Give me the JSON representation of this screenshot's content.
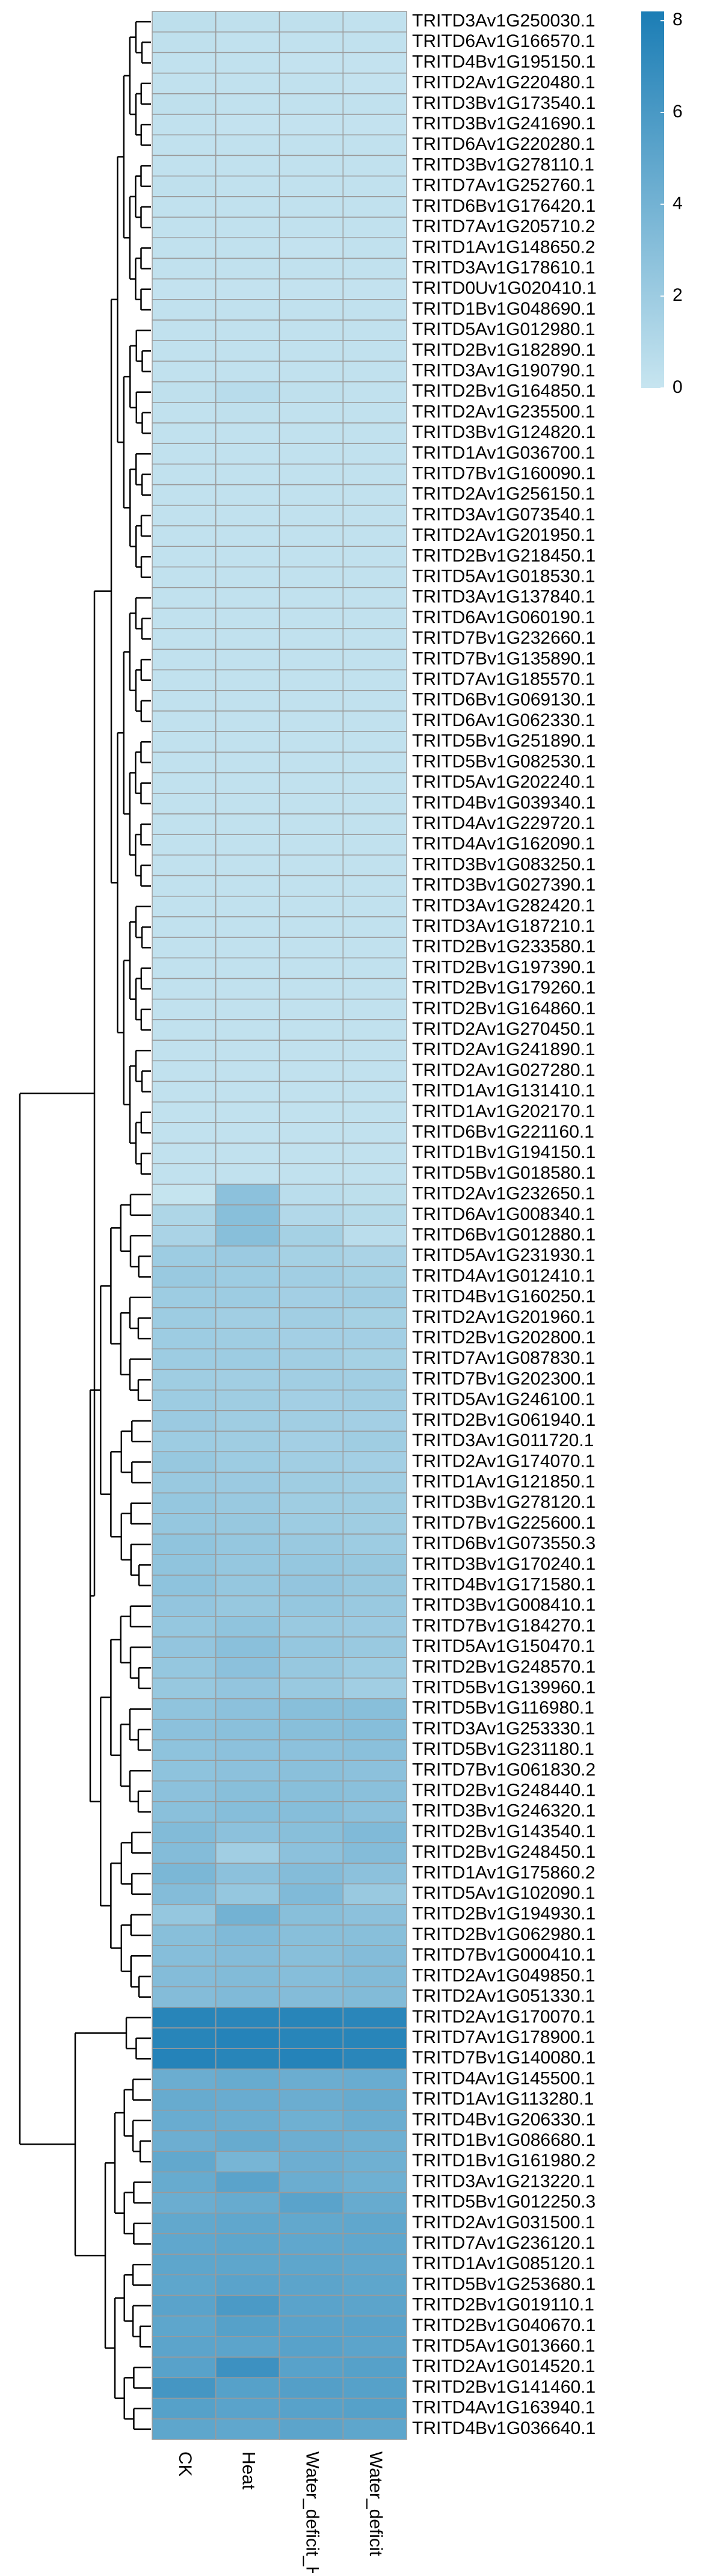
{
  "chart_data": {
    "type": "heatmap",
    "columns": [
      "CK",
      "Heat",
      "Water_deficit_Heat",
      "Water_deficit"
    ],
    "rows": [
      "TRITD3Av1G250030.1",
      "TRITD6Av1G166570.1",
      "TRITD4Bv1G195150.1",
      "TRITD2Av1G220480.1",
      "TRITD3Bv1G173540.1",
      "TRITD3Bv1G241690.1",
      "TRITD6Av1G220280.1",
      "TRITD3Bv1G278110.1",
      "TRITD7Av1G252760.1",
      "TRITD6Bv1G176420.1",
      "TRITD7Av1G205710.2",
      "TRITD1Av1G148650.2",
      "TRITD3Av1G178610.1",
      "TRITD0Uv1G020410.1",
      "TRITD1Bv1G048690.1",
      "TRITD5Av1G012980.1",
      "TRITD2Bv1G182890.1",
      "TRITD3Av1G190790.1",
      "TRITD2Bv1G164850.1",
      "TRITD2Av1G235500.1",
      "TRITD3Bv1G124820.1",
      "TRITD1Av1G036700.1",
      "TRITD7Bv1G160090.1",
      "TRITD2Av1G256150.1",
      "TRITD3Av1G073540.1",
      "TRITD2Av1G201950.1",
      "TRITD2Bv1G218450.1",
      "TRITD5Av1G018530.1",
      "TRITD3Av1G137840.1",
      "TRITD6Av1G060190.1",
      "TRITD7Bv1G232660.1",
      "TRITD7Bv1G135890.1",
      "TRITD7Av1G185570.1",
      "TRITD6Bv1G069130.1",
      "TRITD6Av1G062330.1",
      "TRITD5Bv1G251890.1",
      "TRITD5Bv1G082530.1",
      "TRITD5Av1G202240.1",
      "TRITD4Bv1G039340.1",
      "TRITD4Av1G229720.1",
      "TRITD4Av1G162090.1",
      "TRITD3Bv1G083250.1",
      "TRITD3Bv1G027390.1",
      "TRITD3Av1G282420.1",
      "TRITD3Av1G187210.1",
      "TRITD2Bv1G233580.1",
      "TRITD2Bv1G197390.1",
      "TRITD2Bv1G179260.1",
      "TRITD2Bv1G164860.1",
      "TRITD2Av1G270450.1",
      "TRITD2Av1G241890.1",
      "TRITD2Av1G027280.1",
      "TRITD1Av1G131410.1",
      "TRITD1Av1G202170.1",
      "TRITD6Bv1G221160.1",
      "TRITD1Bv1G194150.1",
      "TRITD5Bv1G018580.1",
      "TRITD2Av1G232650.1",
      "TRITD6Av1G008340.1",
      "TRITD6Bv1G012880.1",
      "TRITD5Av1G231930.1",
      "TRITD4Av1G012410.1",
      "TRITD4Bv1G160250.1",
      "TRITD2Av1G201960.1",
      "TRITD2Bv1G202800.1",
      "TRITD7Av1G087830.1",
      "TRITD7Bv1G202300.1",
      "TRITD5Av1G246100.1",
      "TRITD2Bv1G061940.1",
      "TRITD3Av1G011720.1",
      "TRITD2Av1G174070.1",
      "TRITD1Av1G121850.1",
      "TRITD3Bv1G278120.1",
      "TRITD7Bv1G225600.1",
      "TRITD6Bv1G073550.3",
      "TRITD3Bv1G170240.1",
      "TRITD4Bv1G171580.1",
      "TRITD3Bv1G008410.1",
      "TRITD7Bv1G184270.1",
      "TRITD5Av1G150470.1",
      "TRITD2Bv1G248570.1",
      "TRITD5Bv1G139960.1",
      "TRITD5Bv1G116980.1",
      "TRITD3Av1G253330.1",
      "TRITD5Bv1G231180.1",
      "TRITD7Bv1G061830.2",
      "TRITD2Bv1G248440.1",
      "TRITD3Bv1G246320.1",
      "TRITD2Bv1G143540.1",
      "TRITD2Bv1G248450.1",
      "TRITD1Av1G175860.2",
      "TRITD5Av1G102090.1",
      "TRITD2Bv1G194930.1",
      "TRITD2Bv1G062980.1",
      "TRITD7Bv1G000410.1",
      "TRITD2Av1G049850.1",
      "TRITD2Av1G051330.1",
      "TRITD2Av1G170070.1",
      "TRITD7Av1G178900.1",
      "TRITD7Bv1G140080.1",
      "TRITD4Av1G145500.1",
      "TRITD1Av1G113280.1",
      "TRITD4Bv1G206330.1",
      "TRITD1Bv1G086680.1",
      "TRITD1Bv1G161980.2",
      "TRITD3Av1G213220.1",
      "TRITD5Bv1G012250.3",
      "TRITD2Av1G031500.1",
      "TRITD7Av1G236120.1",
      "TRITD1Av1G085120.1",
      "TRITD5Bv1G253680.1",
      "TRITD2Bv1G019110.1",
      "TRITD2Bv1G040670.1",
      "TRITD5Av1G013660.1",
      "TRITD2Av1G014520.1",
      "TRITD2Bv1G141460.1",
      "TRITD4Av1G163940.1",
      "TRITD4Bv1G036640.1"
    ],
    "values": [
      [
        0.5,
        0.4,
        0.4,
        0.3
      ],
      [
        0.4,
        0.3,
        0.3,
        0.3
      ],
      [
        0.3,
        0.3,
        0.2,
        0.2
      ],
      [
        0.3,
        0.3,
        0.3,
        0.2
      ],
      [
        0.4,
        0.3,
        0.3,
        0.3
      ],
      [
        0.3,
        0.2,
        0.2,
        0.2
      ],
      [
        0.3,
        0.3,
        0.3,
        0.3
      ],
      [
        0.3,
        0.3,
        0.3,
        0.3
      ],
      [
        0.4,
        0.3,
        0.3,
        0.3
      ],
      [
        0.3,
        0.3,
        0.3,
        0.3
      ],
      [
        0.3,
        0.3,
        0.3,
        0.3
      ],
      [
        0.3,
        0.3,
        0.2,
        0.3
      ],
      [
        0.3,
        0.3,
        0.3,
        0.3
      ],
      [
        0.2,
        0.2,
        0.2,
        0.2
      ],
      [
        0.3,
        0.3,
        0.3,
        0.3
      ],
      [
        0.3,
        0.3,
        0.3,
        0.3
      ],
      [
        0.3,
        0.3,
        0.3,
        0.3
      ],
      [
        0.3,
        0.3,
        0.3,
        0.3
      ],
      [
        0.4,
        0.7,
        0.4,
        0.3
      ],
      [
        0.3,
        0.4,
        0.3,
        0.3
      ],
      [
        0.3,
        0.3,
        0.3,
        0.3
      ],
      [
        0.3,
        0.3,
        0.3,
        0.3
      ],
      [
        0.3,
        0.3,
        0.3,
        0.3
      ],
      [
        0.3,
        0.3,
        0.3,
        0.3
      ],
      [
        0.3,
        0.3,
        0.3,
        0.3
      ],
      [
        0.3,
        0.3,
        0.3,
        0.3
      ],
      [
        0.3,
        0.3,
        0.3,
        0.3
      ],
      [
        0.3,
        0.3,
        0.3,
        0.3
      ],
      [
        0.3,
        0.3,
        0.3,
        0.3
      ],
      [
        0.3,
        0.3,
        0.3,
        0.3
      ],
      [
        0.3,
        0.3,
        0.3,
        0.3
      ],
      [
        0.3,
        0.3,
        0.3,
        0.3
      ],
      [
        0.3,
        0.3,
        0.3,
        0.3
      ],
      [
        0.3,
        0.3,
        0.3,
        0.3
      ],
      [
        0.3,
        0.3,
        0.3,
        0.3
      ],
      [
        0.3,
        0.3,
        0.3,
        0.3
      ],
      [
        0.3,
        0.3,
        0.3,
        0.3
      ],
      [
        0.3,
        0.3,
        0.3,
        0.3
      ],
      [
        0.3,
        0.3,
        0.3,
        0.3
      ],
      [
        0.3,
        0.3,
        0.3,
        0.3
      ],
      [
        0.3,
        0.3,
        0.3,
        0.3
      ],
      [
        0.3,
        0.3,
        0.3,
        0.3
      ],
      [
        0.3,
        0.3,
        0.3,
        0.3
      ],
      [
        0.3,
        0.3,
        0.3,
        0.3
      ],
      [
        0.3,
        0.3,
        0.3,
        0.3
      ],
      [
        0.3,
        0.3,
        0.3,
        0.3
      ],
      [
        0.3,
        0.3,
        0.3,
        0.3
      ],
      [
        0.3,
        0.3,
        0.3,
        0.3
      ],
      [
        0.3,
        0.3,
        0.3,
        0.3
      ],
      [
        0.3,
        0.3,
        0.3,
        0.3
      ],
      [
        0.3,
        0.3,
        0.3,
        0.3
      ],
      [
        0.3,
        0.3,
        0.3,
        0.3
      ],
      [
        0.3,
        0.3,
        0.3,
        0.3
      ],
      [
        0.3,
        0.3,
        0.3,
        0.3
      ],
      [
        0.3,
        0.3,
        0.3,
        0.3
      ],
      [
        0.3,
        0.3,
        0.3,
        0.3
      ],
      [
        0.3,
        0.3,
        0.3,
        0.3
      ],
      [
        0.1,
        2.8,
        0.6,
        0.5
      ],
      [
        1.2,
        3.0,
        1.0,
        0.8
      ],
      [
        1.4,
        3.0,
        1.6,
        0.6
      ],
      [
        2.0,
        2.1,
        1.6,
        1.4
      ],
      [
        2.2,
        2.0,
        1.8,
        1.6
      ],
      [
        2.0,
        2.0,
        1.7,
        1.8
      ],
      [
        2.0,
        1.8,
        1.8,
        1.6
      ],
      [
        2.0,
        1.9,
        1.7,
        1.7
      ],
      [
        2.0,
        2.0,
        1.8,
        1.6
      ],
      [
        1.9,
        1.8,
        1.8,
        1.8
      ],
      [
        2.0,
        1.9,
        1.7,
        1.8
      ],
      [
        2.1,
        1.9,
        1.8,
        1.7
      ],
      [
        2.0,
        1.9,
        1.7,
        1.9
      ],
      [
        2.3,
        2.0,
        1.8,
        1.7
      ],
      [
        2.2,
        2.1,
        1.9,
        1.8
      ],
      [
        2.4,
        2.2,
        1.9,
        1.9
      ],
      [
        2.4,
        2.3,
        2.0,
        1.9
      ],
      [
        2.6,
        2.4,
        2.2,
        2.0
      ],
      [
        2.6,
        2.4,
        2.4,
        2.3
      ],
      [
        2.7,
        2.4,
        2.5,
        2.3
      ],
      [
        2.5,
        2.3,
        2.4,
        2.2
      ],
      [
        2.4,
        2.6,
        2.2,
        2.1
      ],
      [
        2.5,
        2.9,
        2.4,
        2.2
      ],
      [
        2.4,
        2.8,
        2.3,
        2.0
      ],
      [
        2.3,
        2.5,
        2.2,
        1.8
      ],
      [
        2.6,
        2.8,
        3.0,
        3.0
      ],
      [
        2.8,
        2.9,
        3.0,
        3.1
      ],
      [
        2.7,
        2.8,
        2.8,
        2.9
      ],
      [
        2.7,
        2.8,
        2.9,
        2.8
      ],
      [
        2.8,
        3.0,
        3.0,
        2.9
      ],
      [
        2.9,
        3.1,
        3.1,
        2.8
      ],
      [
        3.3,
        2.8,
        3.0,
        3.4
      ],
      [
        3.2,
        1.8,
        2.8,
        3.2
      ],
      [
        3.6,
        2.8,
        3.2,
        2.8
      ],
      [
        3.2,
        2.4,
        3.4,
        2.2
      ],
      [
        2.4,
        4.0,
        3.0,
        2.8
      ],
      [
        3.0,
        3.4,
        3.0,
        3.0
      ],
      [
        3.1,
        3.2,
        3.0,
        3.2
      ],
      [
        3.2,
        3.3,
        3.1,
        3.3
      ],
      [
        3.2,
        3.4,
        3.2,
        3.3
      ],
      [
        7.6,
        7.5,
        7.6,
        7.5
      ],
      [
        7.6,
        7.7,
        7.6,
        7.6
      ],
      [
        7.7,
        7.6,
        7.7,
        7.5
      ],
      [
        4.4,
        4.6,
        4.4,
        4.5
      ],
      [
        4.6,
        4.5,
        4.4,
        4.6
      ],
      [
        4.5,
        4.4,
        4.2,
        4.4
      ],
      [
        4.3,
        4.6,
        4.3,
        4.2
      ],
      [
        4.8,
        3.8,
        4.3,
        4.2
      ],
      [
        4.6,
        5.2,
        4.4,
        4.2
      ],
      [
        4.4,
        4.6,
        5.2,
        4.6
      ],
      [
        4.8,
        4.9,
        4.8,
        4.9
      ],
      [
        4.9,
        5.0,
        4.9,
        4.9
      ],
      [
        5.0,
        5.0,
        5.0,
        4.9
      ],
      [
        5.0,
        5.2,
        5.1,
        5.0
      ],
      [
        5.2,
        5.9,
        5.2,
        5.1
      ],
      [
        5.0,
        5.4,
        5.2,
        5.2
      ],
      [
        5.1,
        5.1,
        5.3,
        5.1
      ],
      [
        5.3,
        6.6,
        5.3,
        5.4
      ],
      [
        6.2,
        5.4,
        5.5,
        5.4
      ],
      [
        5.4,
        5.2,
        5.3,
        5.4
      ],
      [
        5.0,
        4.9,
        5.1,
        5.0
      ]
    ],
    "colors": [
      "#c7e5f0",
      "#1b7db5"
    ],
    "color_lim": [
      0,
      8.2
    ],
    "color_ticks": [
      0,
      2,
      4,
      6,
      8
    ]
  }
}
